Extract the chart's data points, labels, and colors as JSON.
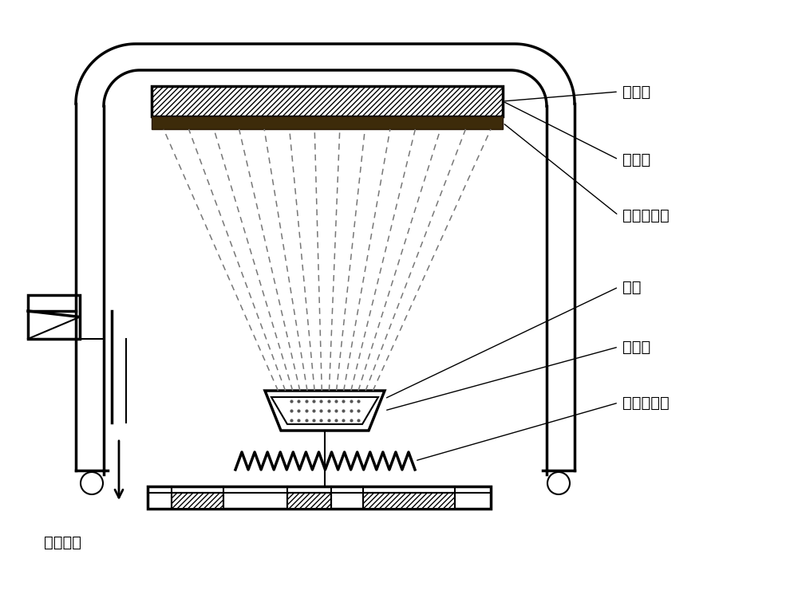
{
  "bg_color": "#ffffff",
  "line_color": "#000000",
  "labels": {
    "vacuum_chamber": "真空室",
    "sample_stage": "样品台",
    "textile_fabric": "纹织品面料",
    "dye": "染料",
    "evaporation_boat": "蕲发舟",
    "evaporation_heater": "蕲发加热器",
    "vacuum_pump": "至真空泵"
  }
}
